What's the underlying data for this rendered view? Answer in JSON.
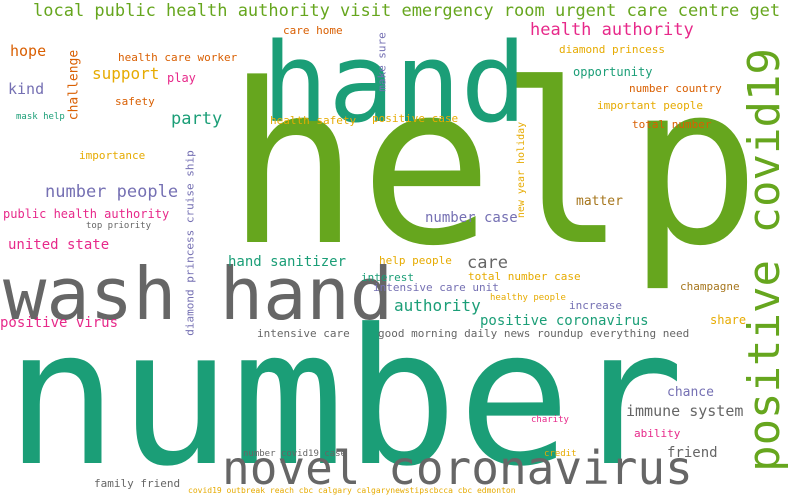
{
  "words": [
    {
      "text": "number",
      "color": "#1b9e77"
    },
    {
      "text": "help",
      "color": "#66a61e"
    },
    {
      "text": "hand",
      "color": "#1b9e77"
    },
    {
      "text": "wash hand",
      "color": "#666666"
    },
    {
      "text": "novel coronavirus",
      "color": "#666666"
    },
    {
      "text": "positive covid19",
      "color": "#66a61e"
    },
    {
      "text": "local public health authority visit emergency room urgent care centre get",
      "color": "#66a61e"
    },
    {
      "text": "health authority",
      "color": "#e7298a"
    },
    {
      "text": "number people",
      "color": "#7570b3"
    },
    {
      "text": "party",
      "color": "#1b9e77"
    },
    {
      "text": "support",
      "color": "#e6ab02"
    },
    {
      "text": "hand sanitizer",
      "color": "#1b9e77"
    },
    {
      "text": "authority",
      "color": "#1b9e77"
    },
    {
      "text": "care",
      "color": "#666666"
    },
    {
      "text": "positive coronavirus",
      "color": "#1b9e77"
    },
    {
      "text": "immune system",
      "color": "#666666"
    },
    {
      "text": "friend",
      "color": "#666666"
    },
    {
      "text": "number case",
      "color": "#7570b3"
    },
    {
      "text": "positive virus",
      "color": "#e7298a"
    },
    {
      "text": "united state",
      "color": "#e7298a"
    },
    {
      "text": "public health authority",
      "color": "#e7298a"
    },
    {
      "text": "diamond princess cruise ship",
      "color": "#7570b3"
    },
    {
      "text": "hope",
      "color": "#d95f02"
    },
    {
      "text": "kind",
      "color": "#7570b3"
    },
    {
      "text": "challenge",
      "color": "#d95f02"
    },
    {
      "text": "mask help",
      "color": "#1b9e77"
    },
    {
      "text": "health care worker",
      "color": "#d95f02"
    },
    {
      "text": "play",
      "color": "#e7298a"
    },
    {
      "text": "safety",
      "color": "#d95f02"
    },
    {
      "text": "care home",
      "color": "#d95f02"
    },
    {
      "text": "make sure",
      "color": "#7570b3"
    },
    {
      "text": "health safety",
      "color": "#e6ab02"
    },
    {
      "text": "positive case",
      "color": "#e6ab02"
    },
    {
      "text": "importance",
      "color": "#e6ab02"
    },
    {
      "text": "top priority",
      "color": "#666666"
    },
    {
      "text": "diamond princess",
      "color": "#e6ab02"
    },
    {
      "text": "opportunity",
      "color": "#1b9e77"
    },
    {
      "text": "number country",
      "color": "#d95f02"
    },
    {
      "text": "important people",
      "color": "#e6ab02"
    },
    {
      "text": "total number",
      "color": "#d95f02"
    },
    {
      "text": "new year holiday",
      "color": "#e6ab02"
    },
    {
      "text": "matter",
      "color": "#a6761d"
    },
    {
      "text": "help people",
      "color": "#e6ab02"
    },
    {
      "text": "interest",
      "color": "#1b9e77"
    },
    {
      "text": "total number case",
      "color": "#e6ab02"
    },
    {
      "text": "intensive care unit",
      "color": "#7570b3"
    },
    {
      "text": "healthy people",
      "color": "#e6ab02"
    },
    {
      "text": "increase",
      "color": "#7570b3"
    },
    {
      "text": "champagne",
      "color": "#a6761d"
    },
    {
      "text": "share",
      "color": "#e6ab02"
    },
    {
      "text": "intensive care",
      "color": "#666666"
    },
    {
      "text": "good morning daily news roundup everything need",
      "color": "#666666"
    },
    {
      "text": "chance",
      "color": "#7570b3"
    },
    {
      "text": "charity",
      "color": "#e7298a"
    },
    {
      "text": "ability",
      "color": "#e7298a"
    },
    {
      "text": "number covid19 case",
      "color": "#666666"
    },
    {
      "text": "family friend",
      "color": "#666666"
    },
    {
      "text": "credit",
      "color": "#e6ab02"
    },
    {
      "text": "covid19 outbreak reach cbc calgary calgarynewstipscbcca cbc edmonton",
      "color": "#e6ab02"
    }
  ]
}
